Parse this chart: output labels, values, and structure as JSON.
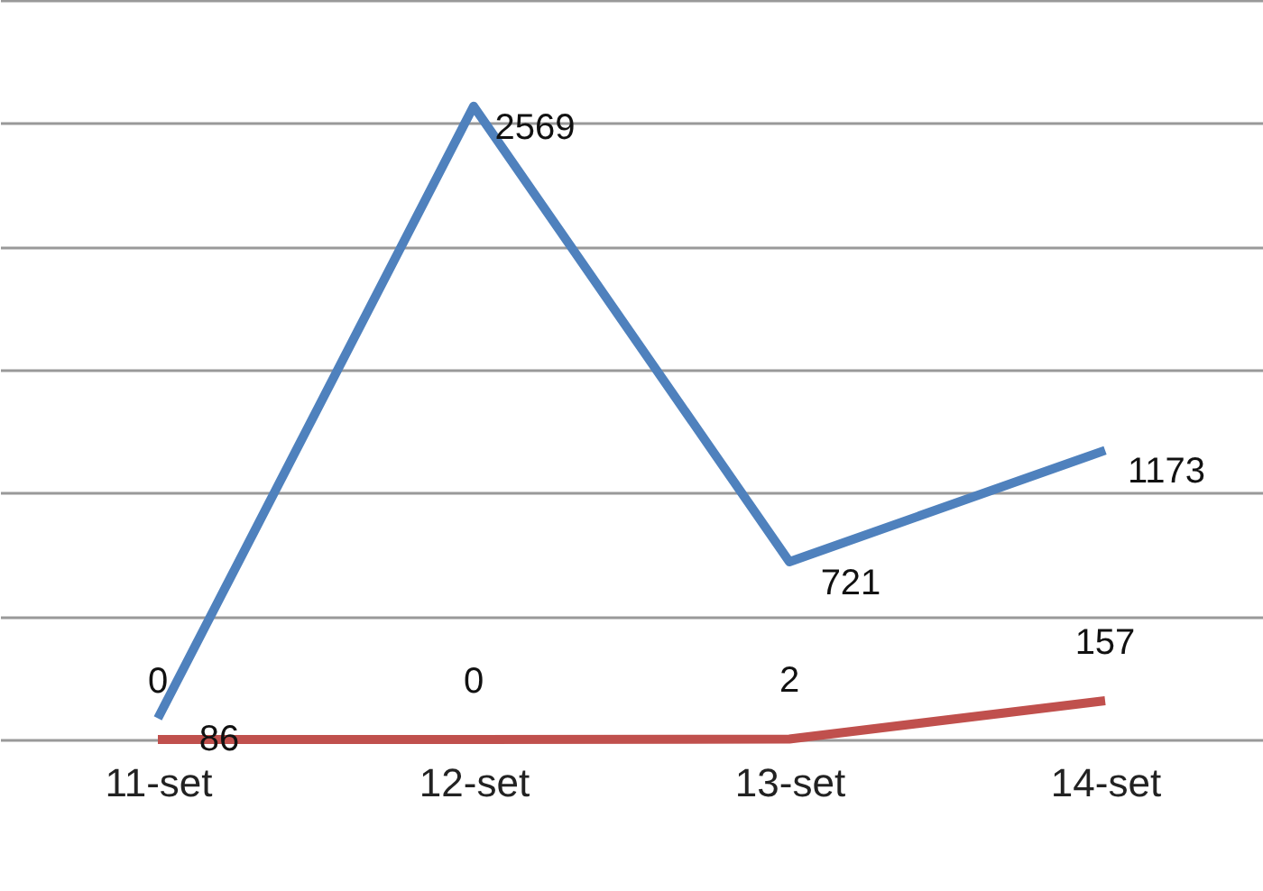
{
  "chart_data": {
    "type": "line",
    "categories": [
      "11-set",
      "12-set",
      "13-set",
      "14-set"
    ],
    "series": [
      {
        "color": "#4f81bd",
        "values": [
          86,
          2569,
          721,
          1173
        ]
      },
      {
        "color": "#c0504d",
        "values": [
          0,
          0,
          2,
          157
        ]
      }
    ],
    "ylim": [
      0,
      3000
    ],
    "yticks": [
      {
        "value": 0,
        "label": null
      },
      {
        "value": 500,
        "label": null
      },
      {
        "value": 1000,
        "label": null
      },
      {
        "value": 1500,
        "label": null
      },
      {
        "value": 2000,
        "label": null
      },
      {
        "value": 2500,
        "label": null
      },
      {
        "value": 3000,
        "label": null
      }
    ],
    "grid": "y",
    "data_labels": true,
    "marker": "none",
    "line_style": "solid"
  }
}
